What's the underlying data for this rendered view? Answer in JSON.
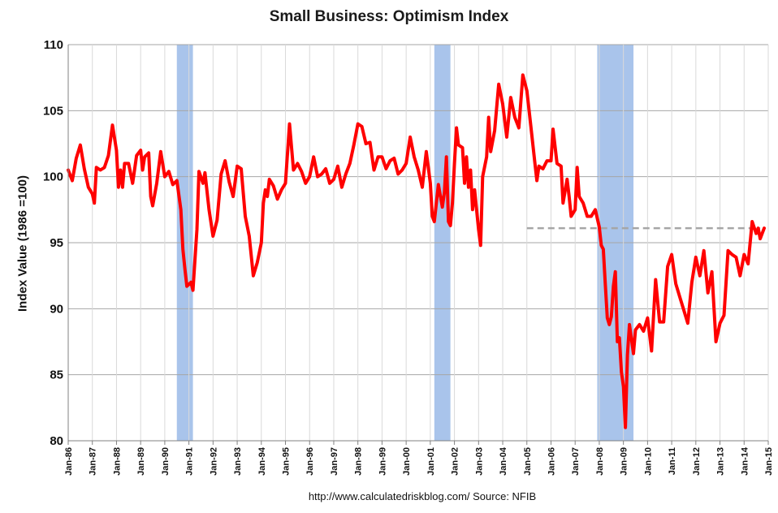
{
  "chart_data": {
    "type": "line",
    "title": "Small Business: Optimism Index",
    "xlabel": "",
    "ylabel": "Index Value (1986 =100)",
    "source": "http://www.calculatedriskblog.com/  Source: NFIB",
    "xlim": [
      "1986-01",
      "2015-01"
    ],
    "ylim": [
      80,
      110
    ],
    "y_ticks": [
      80,
      85,
      90,
      95,
      100,
      105,
      110
    ],
    "x_tick_labels": [
      "Jan-86",
      "Jan-87",
      "Jan-88",
      "Jan-89",
      "Jan-90",
      "Jan-91",
      "Jan-92",
      "Jan-93",
      "Jan-94",
      "Jan-95",
      "Jan-96",
      "Jan-97",
      "Jan-98",
      "Jan-99",
      "Jan-00",
      "Jan-01",
      "Jan-02",
      "Jan-03",
      "Jan-04",
      "Jan-05",
      "Jan-06",
      "Jan-07",
      "Jan-08",
      "Jan-09",
      "Jan-10",
      "Jan-11",
      "Jan-12",
      "Jan-13",
      "Jan-14",
      "Jan-15"
    ],
    "grid": true,
    "legend": "none",
    "recessions": [
      {
        "start": "1990-07",
        "end": "1991-03"
      },
      {
        "start": "2001-03",
        "end": "2001-11"
      },
      {
        "start": "2007-12",
        "end": "2009-06"
      }
    ],
    "reference_line": {
      "start": "2005-01",
      "end": "2014-09",
      "value": 96.1,
      "style": "dashed",
      "color": "#a6a6a6"
    },
    "series": [
      {
        "color": "#ff0000",
        "points": [
          [
            "1986-01",
            100.5
          ],
          [
            "1986-03",
            99.7
          ],
          [
            "1986-05",
            101.4
          ],
          [
            "1986-07",
            102.4
          ],
          [
            "1986-09",
            100.6
          ],
          [
            "1986-11",
            99.2
          ],
          [
            "1987-01",
            98.7
          ],
          [
            "1987-02",
            98.0
          ],
          [
            "1987-03",
            100.7
          ],
          [
            "1987-05",
            100.5
          ],
          [
            "1987-07",
            100.7
          ],
          [
            "1987-09",
            101.6
          ],
          [
            "1987-11",
            103.9
          ],
          [
            "1988-01",
            102.0
          ],
          [
            "1988-02",
            99.2
          ],
          [
            "1988-03",
            100.5
          ],
          [
            "1988-04",
            99.2
          ],
          [
            "1988-05",
            101.0
          ],
          [
            "1988-07",
            101.0
          ],
          [
            "1988-09",
            99.5
          ],
          [
            "1988-11",
            101.6
          ],
          [
            "1989-01",
            102.0
          ],
          [
            "1989-02",
            100.5
          ],
          [
            "1989-03",
            101.5
          ],
          [
            "1989-05",
            101.8
          ],
          [
            "1989-06",
            98.5
          ],
          [
            "1989-07",
            97.8
          ],
          [
            "1989-09",
            99.5
          ],
          [
            "1989-11",
            101.9
          ],
          [
            "1990-01",
            100.0
          ],
          [
            "1990-03",
            100.4
          ],
          [
            "1990-05",
            99.4
          ],
          [
            "1990-07",
            99.7
          ],
          [
            "1990-09",
            97.5
          ],
          [
            "1990-10",
            94.5
          ],
          [
            "1990-11",
            93.0
          ],
          [
            "1990-12",
            91.7
          ],
          [
            "1991-02",
            92.0
          ],
          [
            "1991-03",
            91.4
          ],
          [
            "1991-05",
            96.0
          ],
          [
            "1991-06",
            100.4
          ],
          [
            "1991-08",
            99.5
          ],
          [
            "1991-09",
            100.3
          ],
          [
            "1991-11",
            97.5
          ],
          [
            "1992-01",
            95.5
          ],
          [
            "1992-03",
            96.7
          ],
          [
            "1992-05",
            100.2
          ],
          [
            "1992-07",
            101.2
          ],
          [
            "1992-09",
            99.6
          ],
          [
            "1992-11",
            98.5
          ],
          [
            "1993-01",
            100.8
          ],
          [
            "1993-03",
            100.6
          ],
          [
            "1993-05",
            97.0
          ],
          [
            "1993-07",
            95.5
          ],
          [
            "1993-09",
            92.5
          ],
          [
            "1993-11",
            93.5
          ],
          [
            "1994-01",
            95.0
          ],
          [
            "1994-02",
            98.0
          ],
          [
            "1994-03",
            99.0
          ],
          [
            "1994-04",
            98.5
          ],
          [
            "1994-05",
            99.8
          ],
          [
            "1994-07",
            99.3
          ],
          [
            "1994-09",
            98.3
          ],
          [
            "1994-11",
            99.0
          ],
          [
            "1995-01",
            99.5
          ],
          [
            "1995-03",
            104.0
          ],
          [
            "1995-05",
            100.5
          ],
          [
            "1995-07",
            101.0
          ],
          [
            "1995-09",
            100.4
          ],
          [
            "1995-11",
            99.5
          ],
          [
            "1996-01",
            100.0
          ],
          [
            "1996-03",
            101.5
          ],
          [
            "1996-05",
            100.0
          ],
          [
            "1996-07",
            100.2
          ],
          [
            "1996-09",
            100.6
          ],
          [
            "1996-11",
            99.5
          ],
          [
            "1997-01",
            99.8
          ],
          [
            "1997-03",
            100.8
          ],
          [
            "1997-05",
            99.2
          ],
          [
            "1997-07",
            100.2
          ],
          [
            "1997-09",
            101.0
          ],
          [
            "1997-11",
            102.4
          ],
          [
            "1998-01",
            104.0
          ],
          [
            "1998-03",
            103.8
          ],
          [
            "1998-05",
            102.5
          ],
          [
            "1998-07",
            102.6
          ],
          [
            "1998-09",
            100.5
          ],
          [
            "1998-11",
            101.5
          ],
          [
            "1999-01",
            101.5
          ],
          [
            "1999-03",
            100.6
          ],
          [
            "1999-05",
            101.2
          ],
          [
            "1999-07",
            101.4
          ],
          [
            "1999-09",
            100.2
          ],
          [
            "1999-11",
            100.5
          ],
          [
            "2000-01",
            101.0
          ],
          [
            "2000-03",
            103.0
          ],
          [
            "2000-05",
            101.5
          ],
          [
            "2000-07",
            100.5
          ],
          [
            "2000-09",
            99.2
          ],
          [
            "2000-11",
            101.9
          ],
          [
            "2001-01",
            99.5
          ],
          [
            "2001-02",
            97.0
          ],
          [
            "2001-03",
            96.6
          ],
          [
            "2001-05",
            99.4
          ],
          [
            "2001-07",
            97.7
          ],
          [
            "2001-08",
            98.8
          ],
          [
            "2001-09",
            101.5
          ],
          [
            "2001-10",
            96.6
          ],
          [
            "2001-11",
            96.3
          ],
          [
            "2001-12",
            98.0
          ],
          [
            "2002-01",
            101.0
          ],
          [
            "2002-02",
            103.7
          ],
          [
            "2002-03",
            102.4
          ],
          [
            "2002-05",
            102.2
          ],
          [
            "2002-06",
            99.5
          ],
          [
            "2002-07",
            101.5
          ],
          [
            "2002-08",
            99.2
          ],
          [
            "2002-09",
            100.5
          ],
          [
            "2002-10",
            97.5
          ],
          [
            "2002-11",
            99.0
          ],
          [
            "2003-01",
            96.0
          ],
          [
            "2003-02",
            94.8
          ],
          [
            "2003-03",
            100.0
          ],
          [
            "2003-05",
            101.5
          ],
          [
            "2003-06",
            104.5
          ],
          [
            "2003-07",
            101.9
          ],
          [
            "2003-09",
            103.5
          ],
          [
            "2003-11",
            107.0
          ],
          [
            "2004-01",
            105.5
          ],
          [
            "2004-03",
            103.0
          ],
          [
            "2004-05",
            106.0
          ],
          [
            "2004-07",
            104.5
          ],
          [
            "2004-09",
            103.7
          ],
          [
            "2004-11",
            107.7
          ],
          [
            "2005-01",
            106.5
          ],
          [
            "2005-03",
            103.8
          ],
          [
            "2005-05",
            101.0
          ],
          [
            "2005-06",
            99.7
          ],
          [
            "2005-07",
            100.8
          ],
          [
            "2005-09",
            100.6
          ],
          [
            "2005-11",
            101.2
          ],
          [
            "2006-01",
            101.2
          ],
          [
            "2006-02",
            103.6
          ],
          [
            "2006-04",
            101.0
          ],
          [
            "2006-06",
            100.8
          ],
          [
            "2006-07",
            98.0
          ],
          [
            "2006-09",
            99.8
          ],
          [
            "2006-10",
            98.5
          ],
          [
            "2006-11",
            97.0
          ],
          [
            "2007-01",
            97.5
          ],
          [
            "2007-02",
            100.7
          ],
          [
            "2007-03",
            98.5
          ],
          [
            "2007-05",
            98.0
          ],
          [
            "2007-07",
            97.0
          ],
          [
            "2007-09",
            97.0
          ],
          [
            "2007-11",
            97.5
          ],
          [
            "2008-01",
            96.2
          ],
          [
            "2008-02",
            94.8
          ],
          [
            "2008-03",
            94.5
          ],
          [
            "2008-04",
            91.8
          ],
          [
            "2008-05",
            89.3
          ],
          [
            "2008-06",
            88.8
          ],
          [
            "2008-07",
            89.4
          ],
          [
            "2008-08",
            91.7
          ],
          [
            "2008-09",
            92.8
          ],
          [
            "2008-10",
            87.5
          ],
          [
            "2008-11",
            87.8
          ],
          [
            "2008-12",
            85.2
          ],
          [
            "2009-01",
            84.1
          ],
          [
            "2009-02",
            81.0
          ],
          [
            "2009-03",
            86.5
          ],
          [
            "2009-04",
            88.8
          ],
          [
            "2009-05",
            87.7
          ],
          [
            "2009-06",
            86.6
          ],
          [
            "2009-07",
            88.4
          ],
          [
            "2009-09",
            88.8
          ],
          [
            "2009-11",
            88.3
          ],
          [
            "2010-01",
            89.3
          ],
          [
            "2010-03",
            86.8
          ],
          [
            "2010-05",
            92.2
          ],
          [
            "2010-07",
            89.0
          ],
          [
            "2010-09",
            89.0
          ],
          [
            "2010-11",
            93.2
          ],
          [
            "2011-01",
            94.1
          ],
          [
            "2011-03",
            91.9
          ],
          [
            "2011-05",
            90.9
          ],
          [
            "2011-07",
            89.9
          ],
          [
            "2011-09",
            88.9
          ],
          [
            "2011-11",
            92.0
          ],
          [
            "2012-01",
            93.9
          ],
          [
            "2012-03",
            92.5
          ],
          [
            "2012-05",
            94.4
          ],
          [
            "2012-07",
            91.2
          ],
          [
            "2012-09",
            92.8
          ],
          [
            "2012-11",
            87.5
          ],
          [
            "2013-01",
            88.9
          ],
          [
            "2013-03",
            89.5
          ],
          [
            "2013-05",
            94.4
          ],
          [
            "2013-07",
            94.1
          ],
          [
            "2013-09",
            93.9
          ],
          [
            "2013-11",
            92.5
          ],
          [
            "2014-01",
            94.1
          ],
          [
            "2014-03",
            93.4
          ],
          [
            "2014-05",
            96.6
          ],
          [
            "2014-07",
            95.7
          ],
          [
            "2014-08",
            96.1
          ],
          [
            "2014-09",
            95.3
          ],
          [
            "2014-11",
            96.1
          ]
        ]
      }
    ]
  }
}
